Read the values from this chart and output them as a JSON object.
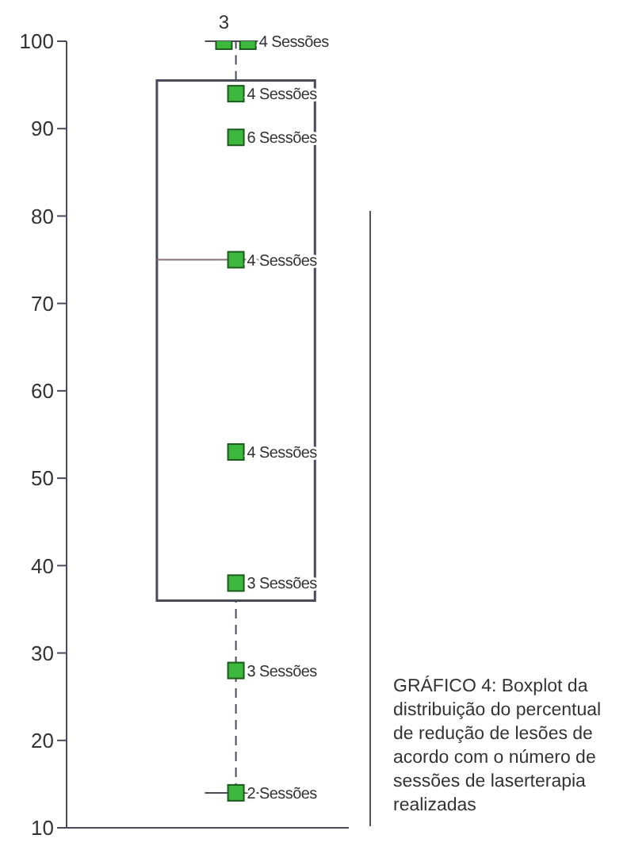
{
  "chart_data": {
    "type": "box",
    "categories": [
      null
    ],
    "boxes": [
      {
        "low": 14,
        "q1": 36,
        "median": 75,
        "q3": 95.5,
        "high": 100
      }
    ],
    "series": [
      {
        "type": "scatter",
        "x": [
          null,
          null,
          null,
          null,
          null,
          null,
          null,
          null,
          null
        ],
        "color": "#3cb83c",
        "values": [
          100,
          100,
          94,
          89,
          75,
          53,
          38,
          28,
          14
        ]
      }
    ],
    "ylim": [
      10,
      100
    ],
    "yticks": [
      10,
      20,
      30,
      40,
      50,
      60,
      70,
      80,
      90,
      100
    ],
    "grid": false,
    "legend": false,
    "marker": "square",
    "annotations": [
      "3",
      "4 Sessões",
      "4 Sessões",
      "6 Sessões",
      "4 Sessões",
      "4 Sessões",
      "3 Sessões",
      "3 Sessões",
      "2 Sessões",
      "GRÁFICO 4: Boxplot da distribuição do percentual de redução de lesões de acordo com o número de sessões de laserterapia realizadas"
    ]
  }
}
